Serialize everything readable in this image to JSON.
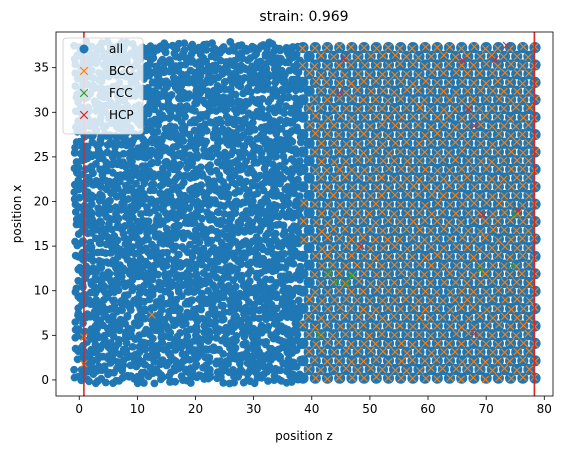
{
  "chart_data": {
    "type": "scatter",
    "title": "strain: 0.969",
    "xlabel": "position z",
    "ylabel": "position x",
    "xlim": [
      -4,
      81.5
    ],
    "ylim": [
      -1.8,
      39
    ],
    "xticks": [
      0,
      10,
      20,
      30,
      40,
      50,
      60,
      70,
      80
    ],
    "yticks": [
      0,
      5,
      10,
      15,
      20,
      25,
      30,
      35
    ],
    "grid": false,
    "legend": {
      "placement": "top-left",
      "entries": [
        "all",
        "BCC",
        "FCC",
        "HCP"
      ]
    },
    "vlines": {
      "x": [
        0.8,
        78.3
      ],
      "color": "#d62728"
    },
    "colors": {
      "all": "#1f77b4",
      "BCC": "#ff7f0e",
      "FCC": "#2ca02c",
      "HCP": "#d62728"
    },
    "series": [
      {
        "name": "all",
        "marker": "circle",
        "region": {
          "x": [
            -0.5,
            79.5
          ],
          "y": [
            0,
            38
          ]
        }
      },
      {
        "name": "BCC",
        "marker": "x",
        "region": {
          "x": [
            38,
            79
          ],
          "y": [
            0,
            38
          ]
        },
        "extra_points": [
          [
            12.5,
            7.3
          ],
          [
            0.8,
            1.8
          ],
          [
            0.8,
            4.8
          ]
        ]
      },
      {
        "name": "FCC",
        "marker": "x",
        "points": [
          [
            41.2,
            5.0
          ],
          [
            43.0,
            12.1
          ],
          [
            44.3,
            11.0
          ],
          [
            46.0,
            10.8
          ],
          [
            46.8,
            11.7
          ],
          [
            69.0,
            12.3
          ],
          [
            75.0,
            18.6
          ],
          [
            74.5,
            12.8
          ]
        ]
      },
      {
        "name": "HCP",
        "marker": "x",
        "points": [
          [
            45.5,
            36.0
          ],
          [
            66.0,
            35.8
          ],
          [
            71.5,
            35.9
          ],
          [
            73.5,
            37.5
          ],
          [
            68.0,
            28.5
          ],
          [
            67.0,
            30.3
          ],
          [
            69.5,
            18.5
          ],
          [
            75.5,
            19.0
          ],
          [
            68.0,
            5.2
          ],
          [
            48.5,
            15.0
          ],
          [
            44.8,
            32.2
          ]
        ]
      }
    ]
  }
}
